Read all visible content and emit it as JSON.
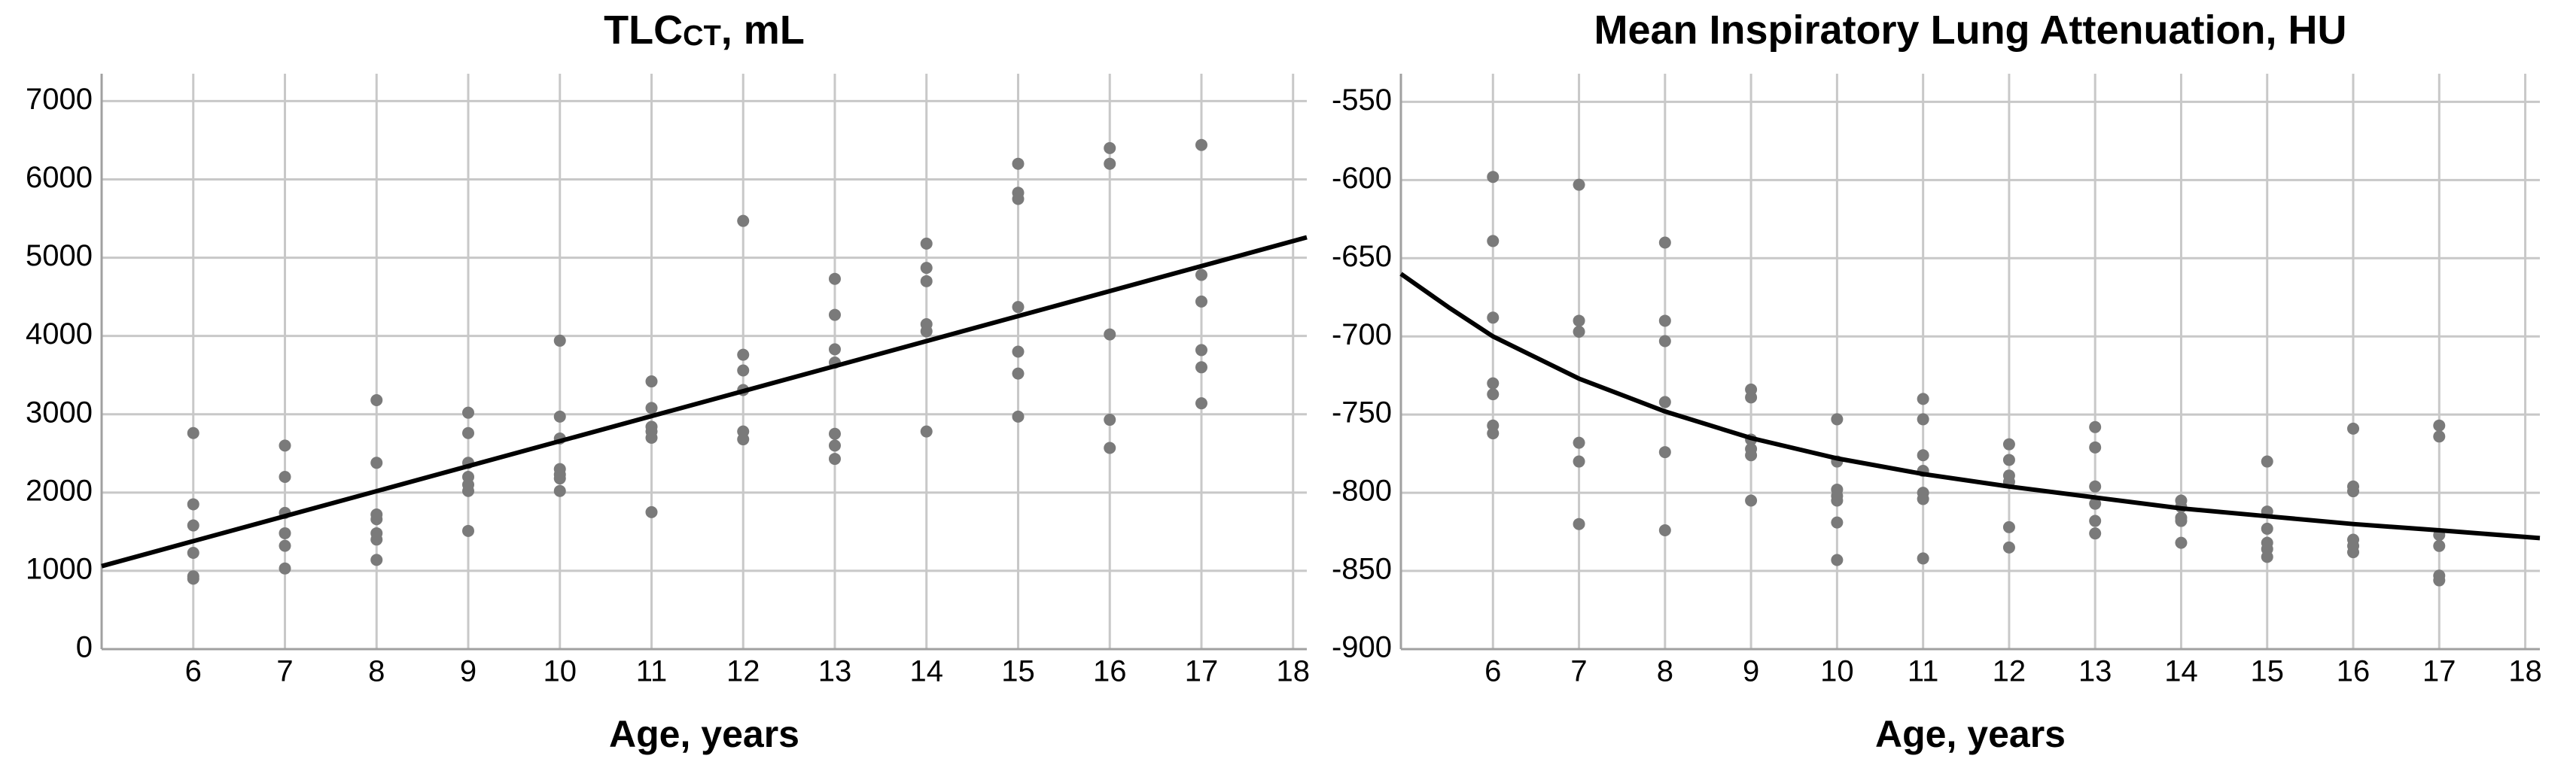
{
  "chart_data": [
    {
      "type": "scatter",
      "title": [
        "TLC",
        "CT",
        ", mL"
      ],
      "xlabel": "Age, years",
      "xlim": [
        5,
        18.15
      ],
      "ylim": [
        0,
        7350
      ],
      "xticks": [
        6,
        7,
        8,
        9,
        10,
        11,
        12,
        13,
        14,
        15,
        16,
        17,
        18
      ],
      "yticks": [
        0,
        1000,
        2000,
        3000,
        4000,
        5000,
        6000,
        7000
      ],
      "grid": true,
      "series": [
        {
          "color": "#7a7a7a",
          "x": [
            6,
            6,
            6,
            6,
            6,
            6,
            7,
            7,
            7,
            7,
            7,
            7,
            8,
            8,
            8,
            8,
            8,
            8,
            8,
            9,
            9,
            9,
            9,
            9,
            9,
            9,
            10,
            10,
            10,
            10,
            10,
            10,
            10,
            11,
            11,
            11,
            11,
            11,
            11,
            12,
            12,
            12,
            12,
            12,
            12,
            13,
            13,
            13,
            13,
            13,
            13,
            13,
            14,
            14,
            14,
            14,
            14,
            14,
            15,
            15,
            15,
            15,
            15,
            15,
            15,
            16,
            16,
            16,
            16,
            16,
            17,
            17,
            17,
            17,
            17,
            17
          ],
          "values": [
            2760,
            1850,
            1580,
            1230,
            930,
            900,
            2600,
            2200,
            1740,
            1480,
            1320,
            1030,
            3180,
            2380,
            1720,
            1660,
            1480,
            1400,
            1140,
            3020,
            2760,
            2380,
            2200,
            2100,
            2020,
            1510,
            3940,
            2970,
            2690,
            2300,
            2230,
            2180,
            2020,
            3420,
            3080,
            2840,
            2780,
            2700,
            1750,
            5470,
            3760,
            3560,
            3310,
            2780,
            2680,
            4730,
            4270,
            3830,
            3660,
            2750,
            2600,
            2430,
            5180,
            4870,
            4700,
            4150,
            4060,
            2780,
            6200,
            5830,
            5750,
            4370,
            3800,
            3520,
            2970,
            6400,
            6200,
            4020,
            2930,
            2570,
            6440,
            4780,
            4440,
            3820,
            3600,
            3140
          ]
        }
      ],
      "fit": {
        "color": "#000000",
        "x": [
          5,
          18.15
        ],
        "values": [
          1060,
          5260
        ]
      }
    },
    {
      "type": "scatter",
      "title": [
        "Mean Inspiratory Lung Attenuation, HU"
      ],
      "xlabel": "Age, years",
      "xlim": [
        4.93,
        18.17
      ],
      "ylim": [
        -900,
        -532
      ],
      "xticks": [
        6,
        7,
        8,
        9,
        10,
        11,
        12,
        13,
        14,
        15,
        16,
        17,
        18
      ],
      "yticks": [
        -900,
        -850,
        -800,
        -750,
        -700,
        -650,
        -600,
        -550
      ],
      "grid": true,
      "series": [
        {
          "color": "#7a7a7a",
          "x": [
            6,
            6,
            6,
            6,
            6,
            6,
            6,
            7,
            7,
            7,
            7,
            7,
            7,
            8,
            8,
            8,
            8,
            8,
            8,
            9,
            9,
            9,
            9,
            9,
            9,
            10,
            10,
            10,
            10,
            10,
            10,
            10,
            11,
            11,
            11,
            11,
            11,
            11,
            11,
            12,
            12,
            12,
            12,
            12,
            12,
            13,
            13,
            13,
            13,
            13,
            13,
            14,
            14,
            14,
            14,
            14,
            15,
            15,
            15,
            15,
            15,
            15,
            16,
            16,
            16,
            16,
            16,
            16,
            17,
            17,
            17,
            17,
            17,
            17
          ],
          "values": [
            -598,
            -639,
            -688,
            -730,
            -737,
            -757,
            -762,
            -603,
            -690,
            -697,
            -768,
            -780,
            -820,
            -640,
            -690,
            -703,
            -742,
            -774,
            -824,
            -734,
            -739,
            -766,
            -772,
            -776,
            -805,
            -753,
            -780,
            -798,
            -802,
            -805,
            -819,
            -843,
            -740,
            -753,
            -776,
            -786,
            -800,
            -804,
            -842,
            -769,
            -779,
            -789,
            -793,
            -822,
            -835,
            -758,
            -771,
            -796,
            -807,
            -818,
            -826,
            -805,
            -809,
            -816,
            -818,
            -832,
            -780,
            -812,
            -823,
            -832,
            -836,
            -841,
            -759,
            -796,
            -799,
            -830,
            -834,
            -838,
            -757,
            -764,
            -827,
            -834,
            -853,
            -856
          ]
        }
      ],
      "fit": {
        "color": "#000000",
        "x": [
          4.93,
          5.5,
          6,
          7,
          8,
          9,
          10,
          11,
          12,
          13,
          14,
          15,
          16,
          17,
          18.17
        ],
        "values": [
          -660,
          -682,
          -700,
          -727,
          -748,
          -765,
          -778,
          -788,
          -796,
          -803,
          -810,
          -815,
          -820,
          -824,
          -829
        ]
      }
    }
  ]
}
